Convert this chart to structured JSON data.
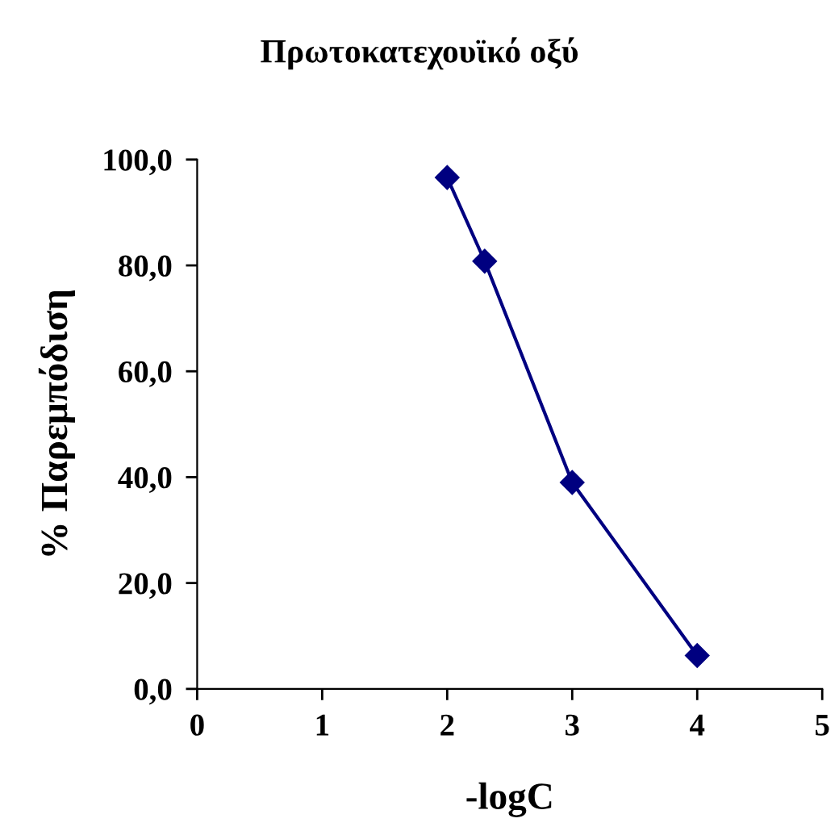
{
  "chart_data": {
    "type": "line",
    "title": "Πρωτοκατεχουϊκό οξύ",
    "xlabel": "-logC",
    "ylabel": "% Παρεμπόδιση",
    "x": [
      2,
      2.3,
      3,
      4
    ],
    "series": [
      {
        "color": "#000080",
        "values": [
          96.6,
          80.8,
          39.0,
          6.3
        ]
      }
    ],
    "marker": "diamond",
    "line_style": "solid",
    "xlim": [
      0,
      5
    ],
    "xticks": [
      0,
      1,
      2,
      3,
      4,
      5
    ],
    "ylim": [
      0,
      100
    ],
    "yticks": [
      {
        "value": 0,
        "label": "0,0"
      },
      {
        "value": 20,
        "label": "20,0"
      },
      {
        "value": 40,
        "label": "40,0"
      },
      {
        "value": 60,
        "label": "60,0"
      },
      {
        "value": 80,
        "label": "80,0"
      },
      {
        "value": 100,
        "label": "100,0"
      }
    ],
    "grid": false,
    "legend": false
  }
}
